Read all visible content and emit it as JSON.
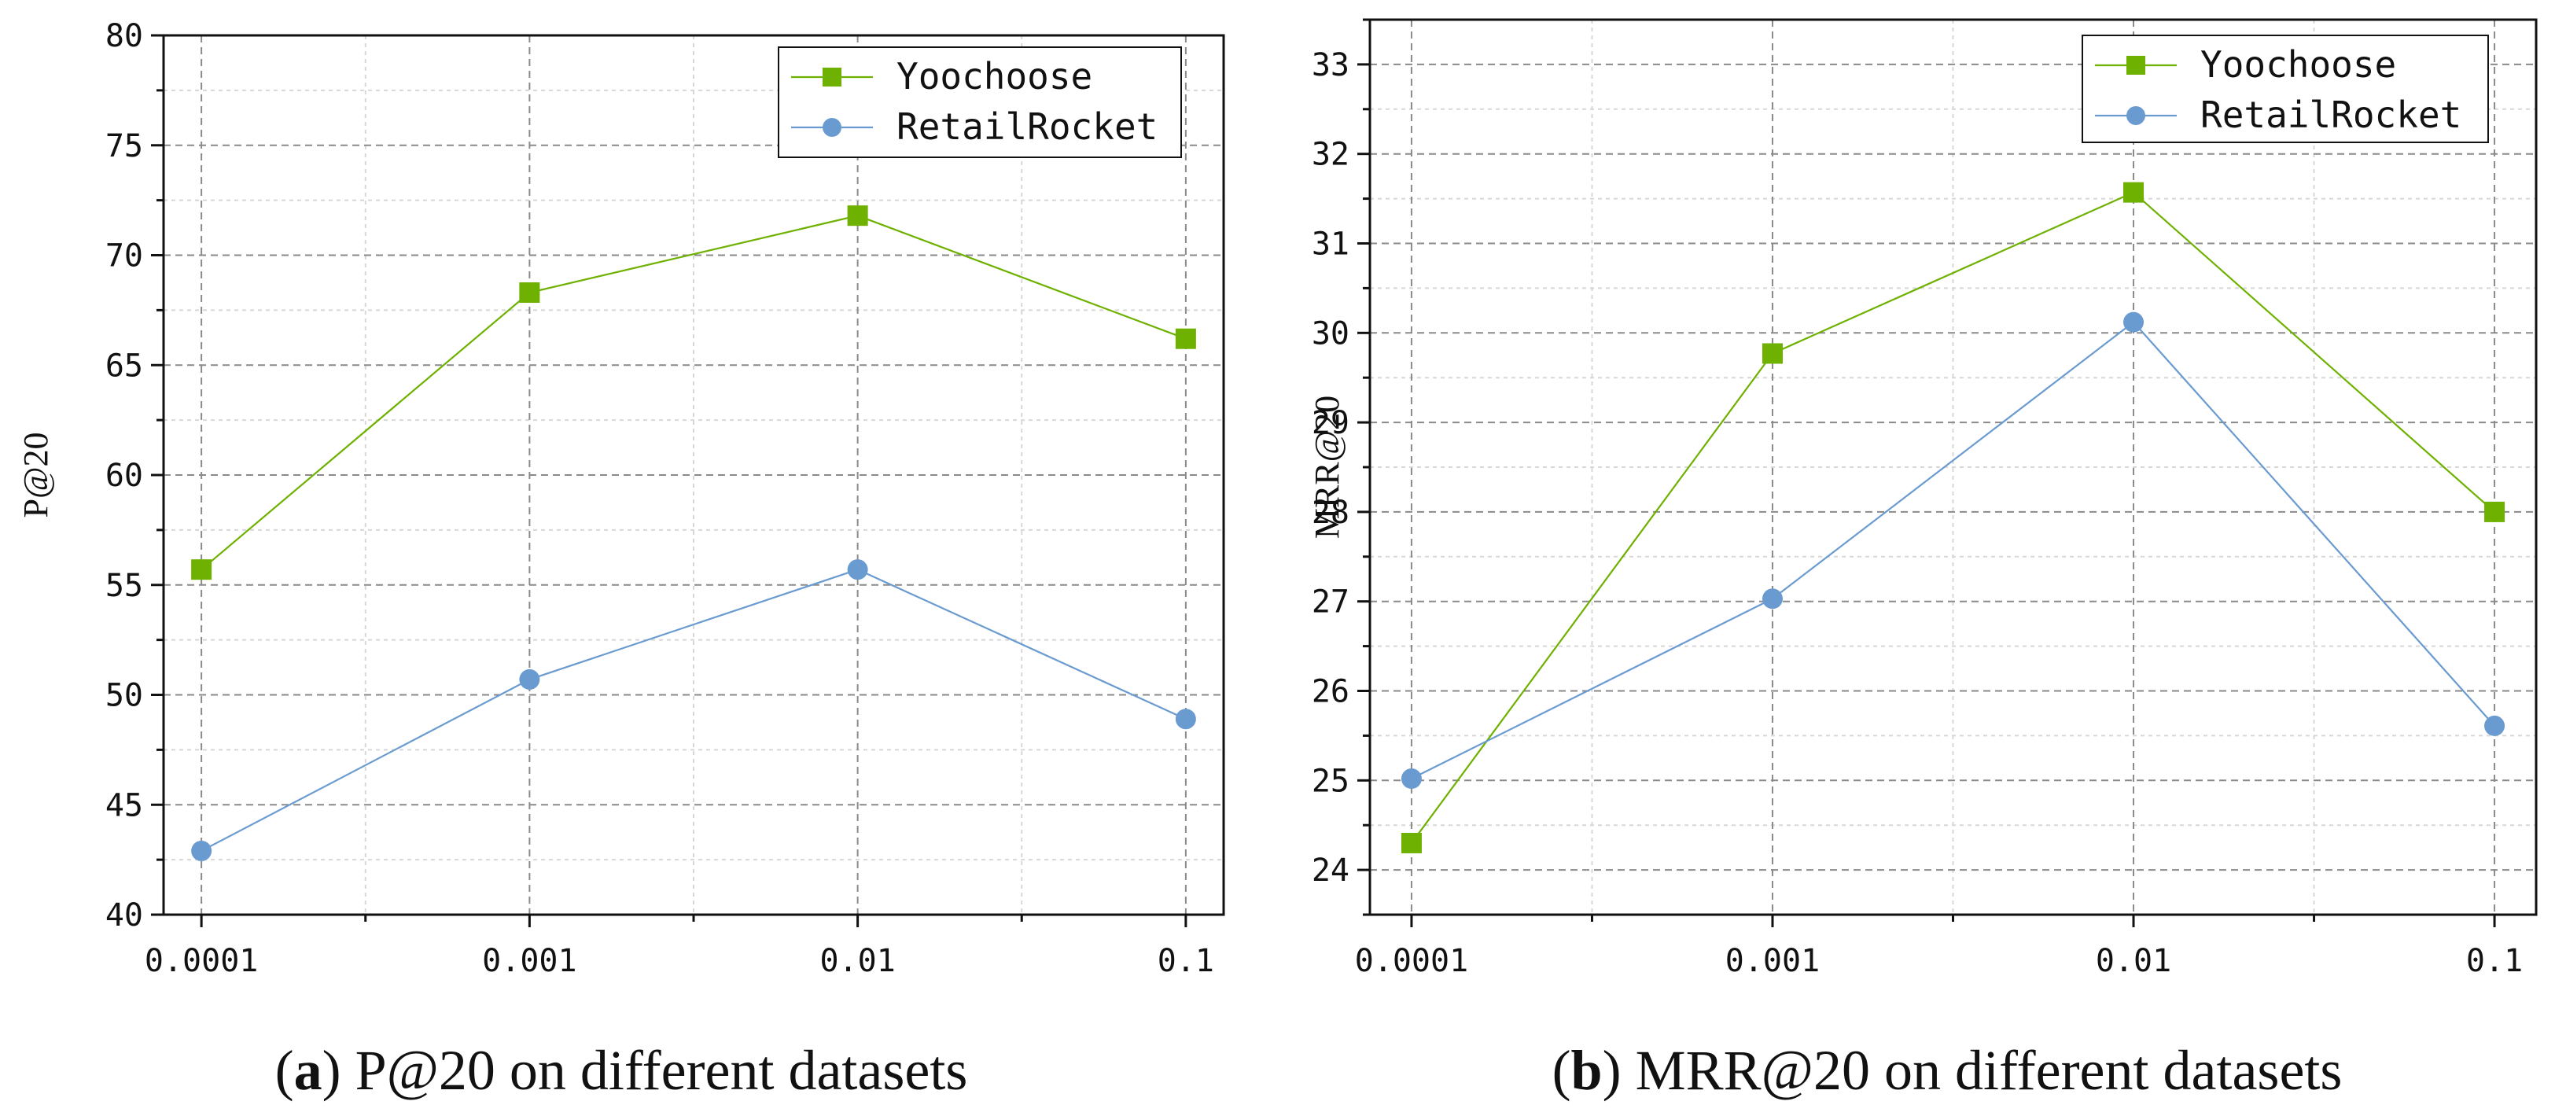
{
  "colors": {
    "yoochoose": "#6eb100",
    "retailrocket": "#6a9bd0"
  },
  "chart_data": [
    {
      "type": "line",
      "title": "",
      "xlabel": "",
      "ylabel": "P@20",
      "categories": [
        "0.0001",
        "0.001",
        "0.01",
        "0.1"
      ],
      "ylim": [
        40,
        80
      ],
      "yticks": [
        "40",
        "45",
        "50",
        "55",
        "60",
        "65",
        "70",
        "75",
        "80"
      ],
      "grid": true,
      "legend_position": "top-right",
      "series": [
        {
          "name": "Yoochoose",
          "marker": "square",
          "values": [
            55.7,
            68.3,
            71.8,
            66.2
          ]
        },
        {
          "name": "RetailRocket",
          "marker": "circle",
          "values": [
            42.9,
            50.7,
            55.7,
            48.9
          ]
        }
      ],
      "caption": {
        "label": "a",
        "text": "P@20 on different datasets"
      }
    },
    {
      "type": "line",
      "title": "",
      "xlabel": "",
      "ylabel": "MRR@20",
      "categories": [
        "0.0001",
        "0.001",
        "0.01",
        "0.1"
      ],
      "ylim": [
        23.5,
        33.5
      ],
      "yticks": [
        "24",
        "25",
        "26",
        "27",
        "28",
        "29",
        "30",
        "31",
        "32",
        "33"
      ],
      "grid": true,
      "legend_position": "top-right",
      "series": [
        {
          "name": "Yoochoose",
          "marker": "square",
          "values": [
            24.3,
            29.77,
            31.57,
            28.0
          ]
        },
        {
          "name": "RetailRocket",
          "marker": "circle",
          "values": [
            25.02,
            27.03,
            30.12,
            25.61
          ]
        }
      ],
      "caption": {
        "label": "b",
        "text": "MRR@20 on different datasets"
      }
    }
  ]
}
